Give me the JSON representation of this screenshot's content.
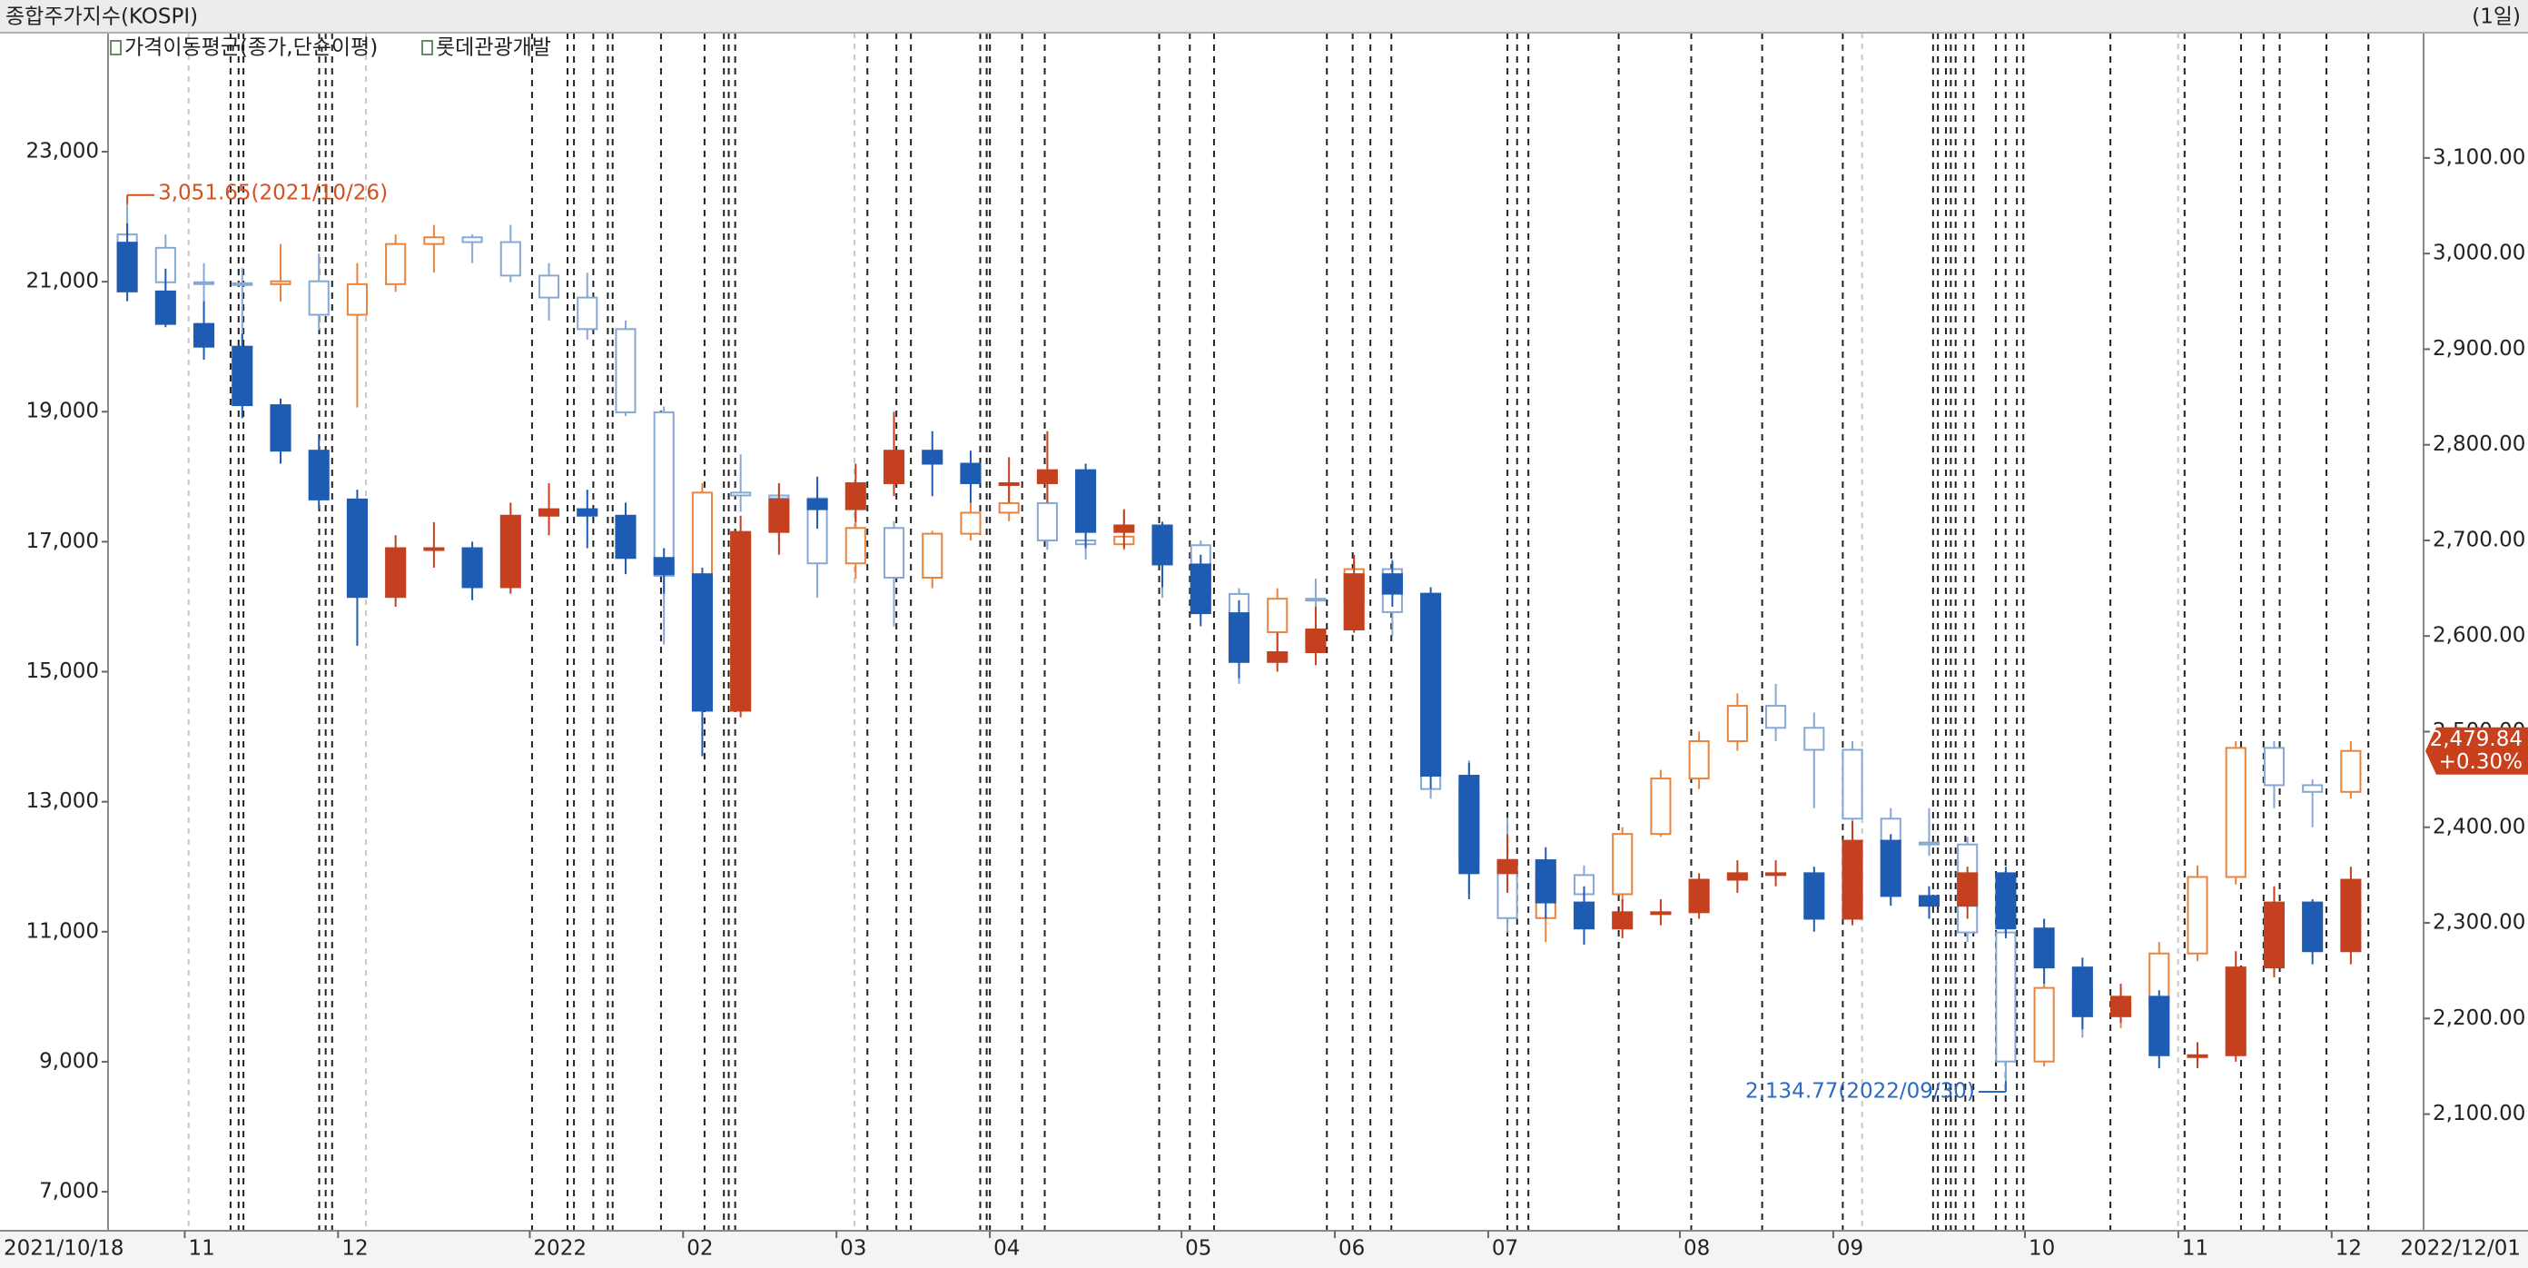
{
  "chart_data": {
    "type": "candlestick",
    "title": "종합주가지수(KOSPI)",
    "period_label": "(1일)",
    "indicator_label": "가격이동평균(종가,단순이평)",
    "categories": [
      "2021/10/18",
      null,
      "11",
      null,
      null,
      null,
      "12",
      null,
      null,
      null,
      null,
      "2022",
      null,
      null,
      null,
      "02",
      null,
      null,
      null,
      "03",
      null,
      null,
      null,
      "04",
      null,
      null,
      null,
      null,
      "05",
      null,
      null,
      null,
      "06",
      null,
      null,
      null,
      "07",
      null,
      null,
      null,
      null,
      "08",
      null,
      null,
      null,
      "09",
      null,
      null,
      null,
      null,
      "10",
      null,
      null,
      null,
      "11",
      null,
      null,
      null,
      "12"
    ],
    "x_end_label": "2022/12/01",
    "ylim": [
      6400,
      24830
    ],
    "yticks": [
      {
        "value": 7000,
        "label": "7,000"
      },
      {
        "value": 9000,
        "label": "9,000"
      },
      {
        "value": 11000,
        "label": "11,000"
      },
      {
        "value": 13000,
        "label": "13,000"
      },
      {
        "value": 15000,
        "label": "15,000"
      },
      {
        "value": 17000,
        "label": "17,000"
      },
      {
        "value": 19000,
        "label": "19,000"
      },
      {
        "value": 21000,
        "label": "21,000"
      },
      {
        "value": 23000,
        "label": "23,000"
      }
    ],
    "y2lim": [
      1978,
      3231
    ],
    "y2ticks": [
      {
        "value": 2100,
        "label": "2,100.00"
      },
      {
        "value": 2200,
        "label": "2,200.00"
      },
      {
        "value": 2300,
        "label": "2,300.00"
      },
      {
        "value": 2400,
        "label": "2,400.00"
      },
      {
        "value": 2500,
        "label": "2,500.00"
      },
      {
        "value": 2600,
        "label": "2,600.00"
      },
      {
        "value": 2700,
        "label": "2,700.00"
      },
      {
        "value": 2800,
        "label": "2,800.00"
      },
      {
        "value": 2900,
        "label": "2,900.00"
      },
      {
        "value": 3000,
        "label": "3,000.00"
      },
      {
        "value": 3100,
        "label": "3,100.00"
      }
    ],
    "grid": false,
    "high_label": "3,051.65(2021/10/26)",
    "low_label": "2,134.77(2022/09/30)",
    "last_price_label": "2,479.84",
    "last_change_label": "+0.30%",
    "series": [
      {
        "axis": "y2",
        "hollow": true,
        "up_color": "#e8843e",
        "down_color": "#86a8d4",
        "ohlc": [
          [
            3020,
            3051.65,
            2990,
            3006
          ],
          [
            3006,
            3020,
            2960,
            2970
          ],
          [
            2970,
            2990,
            2930,
            2969
          ],
          [
            2969,
            2985,
            2905,
            2968
          ],
          [
            2968,
            3010,
            2950,
            2971
          ],
          [
            2971,
            3000,
            2920,
            2936
          ],
          [
            2936,
            2990,
            2839,
            2968
          ],
          [
            2968,
            3020,
            2960,
            3010
          ],
          [
            3010,
            3030,
            2980,
            3017
          ],
          [
            3017,
            3020,
            2990,
            3012
          ],
          [
            3012,
            3030,
            2970,
            2977
          ],
          [
            2977,
            2990,
            2930,
            2954
          ],
          [
            2954,
            2980,
            2910,
            2921
          ],
          [
            2921,
            2930,
            2830,
            2834
          ],
          [
            2834,
            2840,
            2591,
            2663
          ],
          [
            2663,
            2760,
            2650,
            2750
          ],
          [
            2750,
            2790,
            2730,
            2747
          ],
          [
            2747,
            2760,
            2700,
            2744
          ],
          [
            2744,
            2750,
            2640,
            2676
          ],
          [
            2676,
            2730,
            2660,
            2713
          ],
          [
            2713,
            2720,
            2610,
            2661
          ],
          [
            2661,
            2710,
            2650,
            2707
          ],
          [
            2707,
            2740,
            2700,
            2729
          ],
          [
            2729,
            2760,
            2720,
            2739
          ],
          [
            2739,
            2750,
            2690,
            2700
          ],
          [
            2700,
            2720,
            2680,
            2696
          ],
          [
            2696,
            2730,
            2690,
            2704
          ],
          [
            2704,
            2720,
            2640,
            2695
          ],
          [
            2695,
            2700,
            2630,
            2644
          ],
          [
            2644,
            2650,
            2550,
            2604
          ],
          [
            2604,
            2650,
            2580,
            2639
          ],
          [
            2639,
            2660,
            2620,
            2638
          ],
          [
            2638,
            2680,
            2630,
            2670
          ],
          [
            2670,
            2680,
            2600,
            2625
          ],
          [
            2625,
            2630,
            2430,
            2440
          ],
          [
            2440,
            2470,
            2330,
            2366
          ],
          [
            2366,
            2410,
            2290,
            2305
          ],
          [
            2305,
            2360,
            2280,
            2350
          ],
          [
            2350,
            2360,
            2300,
            2330
          ],
          [
            2330,
            2400,
            2320,
            2393
          ],
          [
            2393,
            2460,
            2390,
            2451
          ],
          [
            2451,
            2500,
            2440,
            2490
          ],
          [
            2490,
            2540,
            2480,
            2527
          ],
          [
            2527,
            2550,
            2490,
            2504
          ],
          [
            2504,
            2520,
            2420,
            2481
          ],
          [
            2481,
            2490,
            2400,
            2409
          ],
          [
            2409,
            2420,
            2370,
            2384
          ],
          [
            2384,
            2420,
            2370,
            2382
          ],
          [
            2382,
            2390,
            2280,
            2290
          ],
          [
            2290,
            2300,
            2134.77,
            2155
          ],
          [
            2155,
            2240,
            2150,
            2232
          ],
          [
            2232,
            2240,
            2180,
            2212
          ],
          [
            2212,
            2230,
            2190,
            2213
          ],
          [
            2213,
            2280,
            2200,
            2268
          ],
          [
            2268,
            2360,
            2260,
            2348
          ],
          [
            2348,
            2490,
            2340,
            2483
          ],
          [
            2483,
            2490,
            2420,
            2444
          ],
          [
            2444,
            2450,
            2400,
            2437
          ],
          [
            2437,
            2490,
            2430,
            2479.84
          ]
        ]
      },
      {
        "name": "롯데관광개발",
        "axis": "y",
        "hollow": false,
        "up_color": "#c4401f",
        "down_color": "#1e5cb3",
        "ohlc": [
          [
            21600,
            21900,
            20700,
            20850
          ],
          [
            20850,
            21200,
            20300,
            20350
          ],
          [
            20350,
            20700,
            19800,
            20000
          ],
          [
            20000,
            20200,
            18900,
            19100
          ],
          [
            19100,
            19200,
            18200,
            18400
          ],
          [
            18400,
            18600,
            17500,
            17650
          ],
          [
            17650,
            17800,
            15400,
            16150
          ],
          [
            16150,
            17100,
            16000,
            16900
          ],
          [
            16900,
            17300,
            16600,
            16900
          ],
          [
            16900,
            17000,
            16100,
            16300
          ],
          [
            16300,
            17600,
            16200,
            17400
          ],
          [
            17400,
            17900,
            17100,
            17500
          ],
          [
            17500,
            17800,
            16900,
            17400
          ],
          [
            17400,
            17600,
            16500,
            16750
          ],
          [
            16750,
            16900,
            16200,
            16500
          ],
          [
            16500,
            16600,
            13700,
            14400
          ],
          [
            14400,
            17400,
            14300,
            17150
          ],
          [
            17150,
            17900,
            16800,
            17650
          ],
          [
            17650,
            18000,
            17200,
            17500
          ],
          [
            17500,
            18200,
            17300,
            17900
          ],
          [
            17900,
            19000,
            17700,
            18400
          ],
          [
            18400,
            18700,
            17700,
            18200
          ],
          [
            18200,
            18400,
            17600,
            17900
          ],
          [
            17900,
            18300,
            17600,
            17900
          ],
          [
            17900,
            18700,
            17600,
            18100
          ],
          [
            18100,
            18200,
            16900,
            17150
          ],
          [
            17150,
            17500,
            16900,
            17250
          ],
          [
            17250,
            17300,
            16300,
            16650
          ],
          [
            16650,
            16800,
            15700,
            15900
          ],
          [
            15900,
            16100,
            14900,
            15150
          ],
          [
            15150,
            15600,
            15000,
            15300
          ],
          [
            15300,
            16000,
            15100,
            15650
          ],
          [
            15650,
            16800,
            15600,
            16500
          ],
          [
            16500,
            16700,
            16000,
            16200
          ],
          [
            16200,
            16300,
            13200,
            13400
          ],
          [
            13400,
            13600,
            11500,
            11900
          ],
          [
            11900,
            12500,
            11600,
            12100
          ],
          [
            12100,
            12300,
            11200,
            11450
          ],
          [
            11450,
            11700,
            10800,
            11050
          ],
          [
            11050,
            11500,
            10900,
            11300
          ],
          [
            11300,
            11500,
            11100,
            11300
          ],
          [
            11300,
            11900,
            11200,
            11800
          ],
          [
            11800,
            12100,
            11600,
            11900
          ],
          [
            11900,
            12100,
            11700,
            11900
          ],
          [
            11900,
            12000,
            11000,
            11200
          ],
          [
            11200,
            12700,
            11100,
            12400
          ],
          [
            12400,
            12500,
            11400,
            11550
          ],
          [
            11550,
            11700,
            11200,
            11400
          ],
          [
            11400,
            12000,
            11200,
            11900
          ],
          [
            11900,
            12000,
            10900,
            11050
          ],
          [
            11050,
            11200,
            10200,
            10450
          ],
          [
            10450,
            10600,
            9500,
            9700
          ],
          [
            9700,
            10200,
            9600,
            10000
          ],
          [
            10000,
            10100,
            8900,
            9100
          ],
          [
            9100,
            9300,
            8900,
            9100
          ],
          [
            9100,
            10700,
            9000,
            10450
          ],
          [
            10450,
            11700,
            10300,
            11450
          ],
          [
            11450,
            11500,
            10500,
            10700
          ],
          [
            10700,
            12000,
            10500,
            11800
          ]
        ]
      }
    ]
  }
}
